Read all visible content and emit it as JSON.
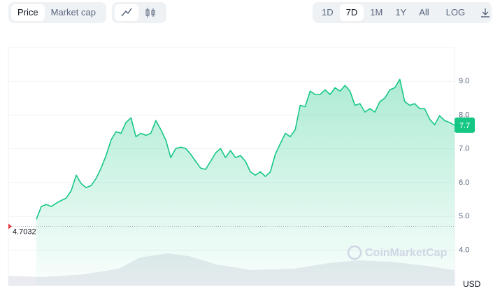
{
  "toolbar": {
    "tabs": [
      "Price",
      "Market cap"
    ],
    "ranges": [
      "1D",
      "7D",
      "1M",
      "1Y",
      "All"
    ],
    "active_range": "7D",
    "log": "LOG"
  },
  "chart_data": {
    "type": "area",
    "values": [
      4.91,
      5.29,
      5.35,
      5.29,
      5.39,
      5.47,
      5.54,
      5.76,
      6.22,
      5.97,
      5.85,
      5.91,
      6.12,
      6.43,
      6.8,
      7.26,
      7.51,
      7.46,
      7.78,
      7.92,
      7.36,
      7.46,
      7.4,
      7.46,
      7.84,
      7.57,
      7.26,
      6.74,
      7.01,
      7.05,
      7.01,
      6.84,
      6.63,
      6.43,
      6.39,
      6.63,
      6.88,
      7.01,
      6.74,
      6.95,
      6.74,
      6.8,
      6.63,
      6.32,
      6.22,
      6.32,
      6.18,
      6.32,
      6.84,
      7.15,
      7.46,
      7.36,
      7.57,
      8.29,
      8.25,
      8.71,
      8.61,
      8.61,
      8.75,
      8.61,
      8.81,
      8.71,
      8.88,
      8.71,
      8.29,
      8.34,
      8.09,
      8.19,
      8.09,
      8.4,
      8.5,
      8.75,
      8.81,
      9.06,
      8.4,
      8.29,
      8.34,
      8.19,
      8.19,
      7.88,
      7.71,
      7.98,
      7.84,
      7.78,
      7.7
    ],
    "color": "#16c784",
    "ylim": [
      2.95,
      10
    ],
    "yticks": [
      {
        "value": 4,
        "label": "4.0"
      },
      {
        "value": 5,
        "label": "5.0"
      },
      {
        "value": 6,
        "label": "6.0"
      },
      {
        "value": 7,
        "label": "7.0"
      },
      {
        "value": 8,
        "label": "8.0"
      },
      {
        "value": 9,
        "label": "9.0"
      }
    ],
    "grid": true,
    "reference_price": 4.7032,
    "current_price": 7.7,
    "currency": "USD",
    "watermark": "CoinMarketCap"
  }
}
